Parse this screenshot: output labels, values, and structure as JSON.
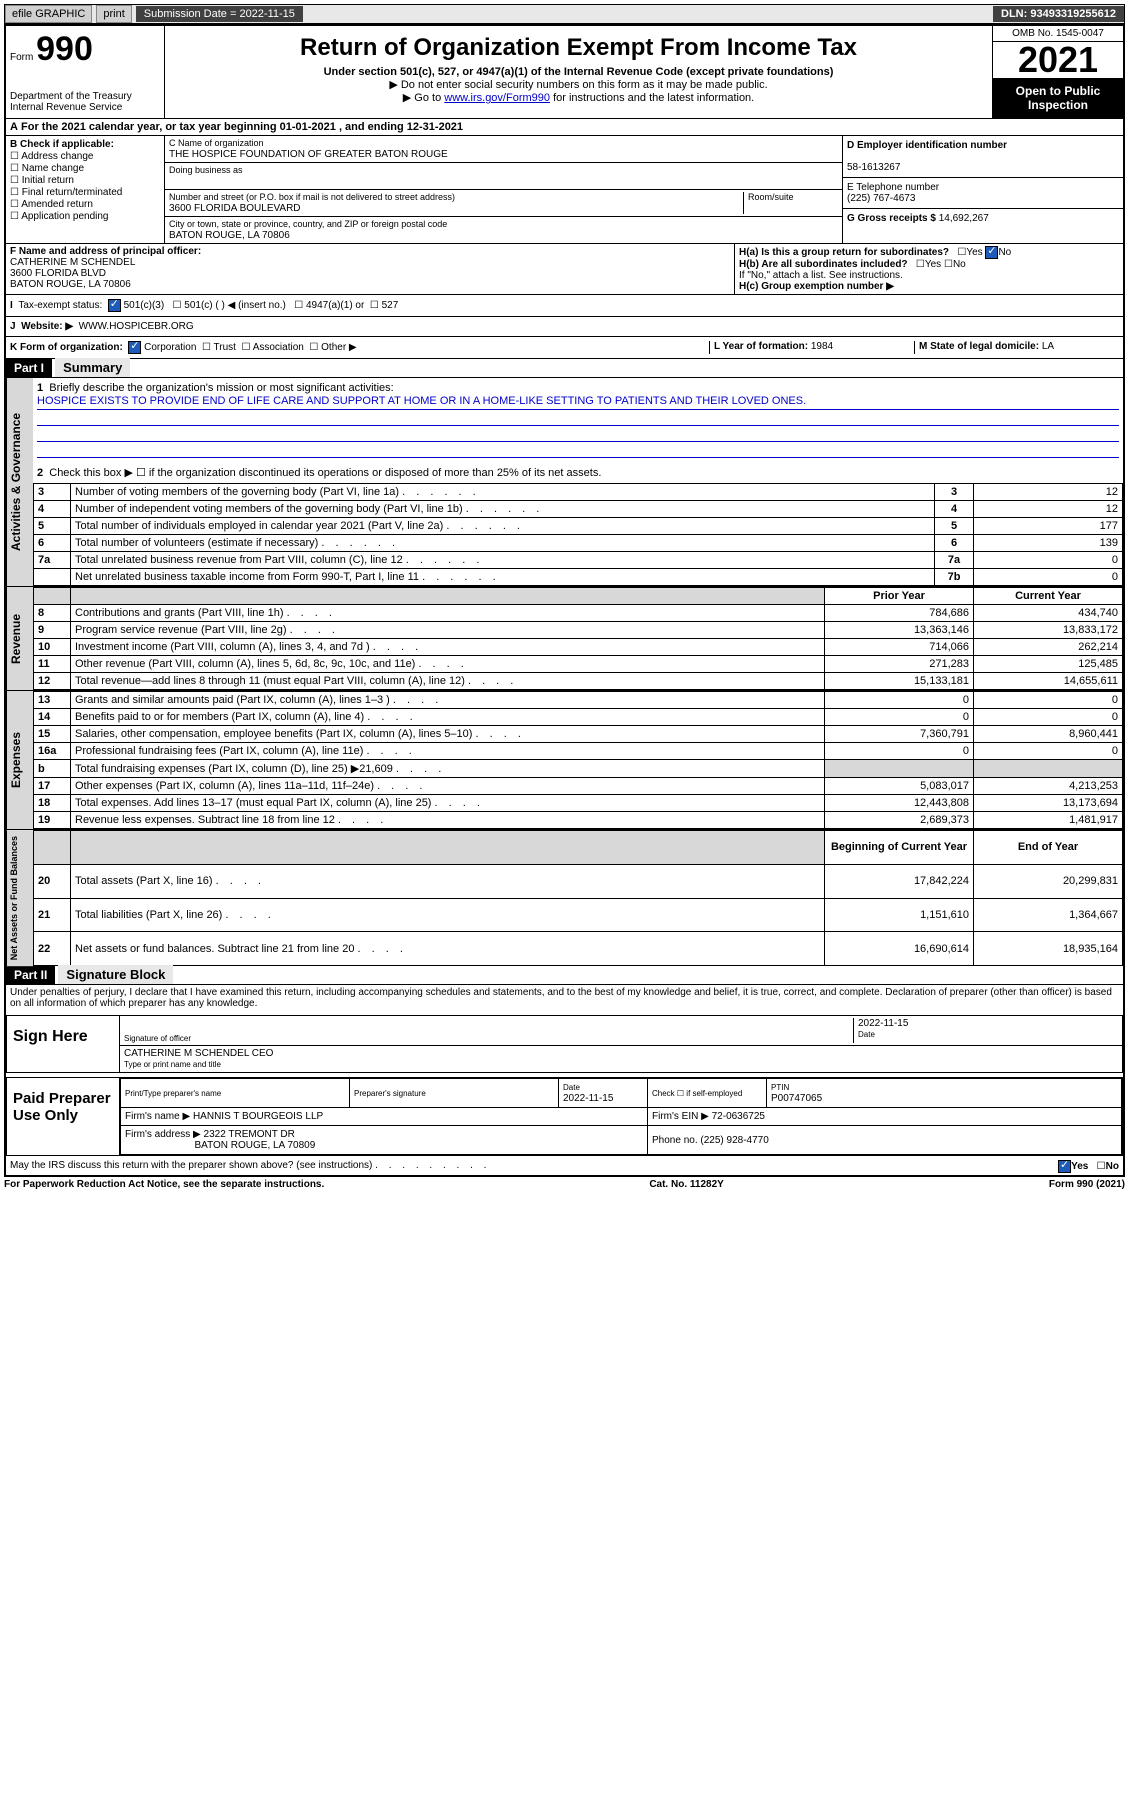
{
  "colors": {
    "link": "#0000cc",
    "dark_bg": "#000000",
    "shade": "#d8d8d8",
    "check_on": "#1e5bb8"
  },
  "topbar": {
    "efile": "efile GRAPHIC",
    "print": "print",
    "sub_label": "Submission Date = 2022-11-15",
    "dln": "DLN: 93493319255612"
  },
  "header": {
    "form_word": "Form",
    "form_num": "990",
    "dept": "Department of the Treasury",
    "irs": "Internal Revenue Service",
    "title": "Return of Organization Exempt From Income Tax",
    "sub1": "Under section 501(c), 527, or 4947(a)(1) of the Internal Revenue Code (except private foundations)",
    "sub2": "▶ Do not enter social security numbers on this form as it may be made public.",
    "sub3_pre": "▶ Go to ",
    "sub3_link": "www.irs.gov/Form990",
    "sub3_post": " for instructions and the latest information.",
    "omb": "OMB No. 1545-0047",
    "year": "2021",
    "inspect1": "Open to Public",
    "inspect2": "Inspection"
  },
  "rowA": "For the 2021 calendar year, or tax year beginning 01-01-2021   , and ending 12-31-2021",
  "colB": {
    "head": "B Check if applicable:",
    "items": [
      "Address change",
      "Name change",
      "Initial return",
      "Final return/terminated",
      "Amended return",
      "Application pending"
    ]
  },
  "colC": {
    "name_lbl": "C Name of organization",
    "name": "THE HOSPICE FOUNDATION OF GREATER BATON ROUGE",
    "dba_lbl": "Doing business as",
    "addr_lbl": "Number and street (or P.O. box if mail is not delivered to street address)",
    "room_lbl": "Room/suite",
    "addr": "3600 FLORIDA BOULEVARD",
    "city_lbl": "City or town, state or province, country, and ZIP or foreign postal code",
    "city": "BATON ROUGE, LA  70806"
  },
  "colDE": {
    "d_lbl": "D Employer identification number",
    "d_val": "58-1613267",
    "e_lbl": "E Telephone number",
    "e_val": "(225) 767-4673",
    "g_lbl": "G Gross receipts $",
    "g_val": "14,692,267"
  },
  "rowF": {
    "f_lbl": "F Name and address of principal officer:",
    "f_name": "CATHERINE M SCHENDEL",
    "f_addr1": "3600 FLORIDA BLVD",
    "f_addr2": "BATON ROUGE, LA  70806",
    "ha": "H(a)  Is this a group return for subordinates?",
    "ha_yes": "Yes",
    "ha_no": "No",
    "hb": "H(b)  Are all subordinates included?",
    "hb_note": "If \"No,\" attach a list. See instructions.",
    "hc": "H(c)  Group exemption number ▶"
  },
  "rowI": {
    "i_lbl": "Tax-exempt status:",
    "opt1": "501(c)(3)",
    "opt2": "501(c) (  ) ◀ (insert no.)",
    "opt3": "4947(a)(1) or",
    "opt4": "527"
  },
  "rowJ": {
    "lbl": "Website: ▶",
    "val": "WWW.HOSPICEBR.ORG"
  },
  "rowK": {
    "lbl": "K Form of organization:",
    "opts": [
      "Corporation",
      "Trust",
      "Association",
      "Other ▶"
    ],
    "l_lbl": "L Year of formation:",
    "l_val": "1984",
    "m_lbl": "M State of legal domicile:",
    "m_val": "LA"
  },
  "part1": {
    "hdr": "Part I",
    "title": "Summary",
    "q1": "Briefly describe the organization's mission or most significant activities:",
    "mission": "HOSPICE EXISTS TO PROVIDE END OF LIFE CARE AND SUPPORT AT HOME OR IN A HOME-LIKE SETTING TO PATIENTS AND THEIR LOVED ONES.",
    "q2": "Check this box ▶ ☐  if the organization discontinued its operations or disposed of more than 25% of its net assets.",
    "gov_lines": [
      {
        "n": "3",
        "t": "Number of voting members of the governing body (Part VI, line 1a)",
        "b": "3",
        "v": "12"
      },
      {
        "n": "4",
        "t": "Number of independent voting members of the governing body (Part VI, line 1b)",
        "b": "4",
        "v": "12"
      },
      {
        "n": "5",
        "t": "Total number of individuals employed in calendar year 2021 (Part V, line 2a)",
        "b": "5",
        "v": "177"
      },
      {
        "n": "6",
        "t": "Total number of volunteers (estimate if necessary)",
        "b": "6",
        "v": "139"
      },
      {
        "n": "7a",
        "t": "Total unrelated business revenue from Part VIII, column (C), line 12",
        "b": "7a",
        "v": "0"
      },
      {
        "n": "",
        "t": "Net unrelated business taxable income from Form 990-T, Part I, line 11",
        "b": "7b",
        "v": "0"
      }
    ],
    "col_hdr_prior": "Prior Year",
    "col_hdr_cur": "Current Year",
    "rev_lines": [
      {
        "n": "8",
        "t": "Contributions and grants (Part VIII, line 1h)",
        "p": "784,686",
        "c": "434,740"
      },
      {
        "n": "9",
        "t": "Program service revenue (Part VIII, line 2g)",
        "p": "13,363,146",
        "c": "13,833,172"
      },
      {
        "n": "10",
        "t": "Investment income (Part VIII, column (A), lines 3, 4, and 7d )",
        "p": "714,066",
        "c": "262,214"
      },
      {
        "n": "11",
        "t": "Other revenue (Part VIII, column (A), lines 5, 6d, 8c, 9c, 10c, and 11e)",
        "p": "271,283",
        "c": "125,485"
      },
      {
        "n": "12",
        "t": "Total revenue—add lines 8 through 11 (must equal Part VIII, column (A), line 12)",
        "p": "15,133,181",
        "c": "14,655,611"
      }
    ],
    "exp_lines": [
      {
        "n": "13",
        "t": "Grants and similar amounts paid (Part IX, column (A), lines 1–3 )",
        "p": "0",
        "c": "0"
      },
      {
        "n": "14",
        "t": "Benefits paid to or for members (Part IX, column (A), line 4)",
        "p": "0",
        "c": "0"
      },
      {
        "n": "15",
        "t": "Salaries, other compensation, employee benefits (Part IX, column (A), lines 5–10)",
        "p": "7,360,791",
        "c": "8,960,441"
      },
      {
        "n": "16a",
        "t": "Professional fundraising fees (Part IX, column (A), line 11e)",
        "p": "0",
        "c": "0"
      },
      {
        "n": "b",
        "t": "Total fundraising expenses (Part IX, column (D), line 25) ▶21,609",
        "p": "",
        "c": ""
      },
      {
        "n": "17",
        "t": "Other expenses (Part IX, column (A), lines 11a–11d, 11f–24e)",
        "p": "5,083,017",
        "c": "4,213,253"
      },
      {
        "n": "18",
        "t": "Total expenses. Add lines 13–17 (must equal Part IX, column (A), line 25)",
        "p": "12,443,808",
        "c": "13,173,694"
      },
      {
        "n": "19",
        "t": "Revenue less expenses. Subtract line 18 from line 12",
        "p": "2,689,373",
        "c": "1,481,917"
      }
    ],
    "na_hdr_beg": "Beginning of Current Year",
    "na_hdr_end": "End of Year",
    "na_lines": [
      {
        "n": "20",
        "t": "Total assets (Part X, line 16)",
        "p": "17,842,224",
        "c": "20,299,831"
      },
      {
        "n": "21",
        "t": "Total liabilities (Part X, line 26)",
        "p": "1,151,610",
        "c": "1,364,667"
      },
      {
        "n": "22",
        "t": "Net assets or fund balances. Subtract line 21 from line 20",
        "p": "16,690,614",
        "c": "18,935,164"
      }
    ],
    "vtabs": {
      "gov": "Activities & Governance",
      "rev": "Revenue",
      "exp": "Expenses",
      "na": "Net Assets or\nFund Balances"
    }
  },
  "part2": {
    "hdr": "Part II",
    "title": "Signature Block",
    "decl": "Under penalties of perjury, I declare that I have examined this return, including accompanying schedules and statements, and to the best of my knowledge and belief, it is true, correct, and complete. Declaration of preparer (other than officer) is based on all information of which preparer has any knowledge.",
    "sign_here": "Sign Here",
    "sig_off": "Signature of officer",
    "date_lbl": "Date",
    "date_val": "2022-11-15",
    "officer": "CATHERINE M SCHENDEL CEO",
    "officer_sub": "Type or print name and title",
    "paid": "Paid Preparer Use Only",
    "prep_name_lbl": "Print/Type preparer's name",
    "prep_sig_lbl": "Preparer's signature",
    "prep_date_lbl": "Date",
    "prep_date": "2022-11-15",
    "check_if": "Check ☐ if self-employed",
    "ptin_lbl": "PTIN",
    "ptin": "P00747065",
    "firm_name_lbl": "Firm's name    ▶",
    "firm_name": "HANNIS T BOURGEOIS LLP",
    "firm_ein_lbl": "Firm's EIN ▶",
    "firm_ein": "72-0636725",
    "firm_addr_lbl": "Firm's address ▶",
    "firm_addr1": "2322 TREMONT DR",
    "firm_addr2": "BATON ROUGE, LA  70809",
    "phone_lbl": "Phone no.",
    "phone": "(225) 928-4770",
    "may_irs": "May the IRS discuss this return with the preparer shown above? (see instructions)",
    "yes": "Yes",
    "no": "No"
  },
  "footer": {
    "left": "For Paperwork Reduction Act Notice, see the separate instructions.",
    "mid": "Cat. No. 11282Y",
    "right": "Form 990 (2021)"
  }
}
